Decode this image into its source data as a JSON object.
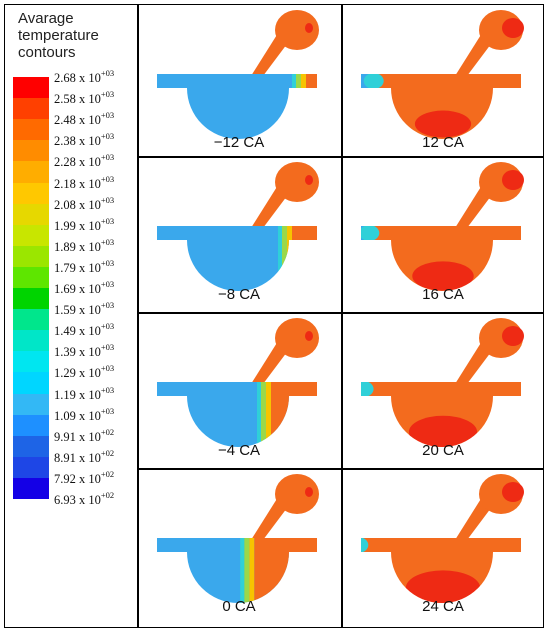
{
  "legend": {
    "title_lines": [
      "Avarage",
      "temperature",
      "contours"
    ],
    "colors": [
      "#ff0000",
      "#ff4000",
      "#ff6a00",
      "#ff8c00",
      "#ffad00",
      "#ffc800",
      "#e6d800",
      "#c8e600",
      "#9be600",
      "#5ee600",
      "#00d400",
      "#00e68c",
      "#00e6c8",
      "#00e6f0",
      "#00d6ff",
      "#33b8f5",
      "#1e90ff",
      "#1e64e6",
      "#1e46e6",
      "#1400e6"
    ],
    "ticks": [
      {
        "m": "2.68",
        "e": "+03"
      },
      {
        "m": "2.58",
        "e": "+03"
      },
      {
        "m": "2.48",
        "e": "+03"
      },
      {
        "m": "2.38",
        "e": "+03"
      },
      {
        "m": "2.28",
        "e": "+03"
      },
      {
        "m": "2.18",
        "e": "+03"
      },
      {
        "m": "2.08",
        "e": "+03"
      },
      {
        "m": "1.99",
        "e": "+03"
      },
      {
        "m": "1.89",
        "e": "+03"
      },
      {
        "m": "1.79",
        "e": "+03"
      },
      {
        "m": "1.69",
        "e": "+03"
      },
      {
        "m": "1.59",
        "e": "+03"
      },
      {
        "m": "1.49",
        "e": "+03"
      },
      {
        "m": "1.39",
        "e": "+03"
      },
      {
        "m": "1.29",
        "e": "+03"
      },
      {
        "m": "1.19",
        "e": "+03"
      },
      {
        "m": "1.09",
        "e": "+03"
      },
      {
        "m": "9.91",
        "e": "+02"
      },
      {
        "m": "8.91",
        "e": "+02"
      },
      {
        "m": "7.92",
        "e": "+02"
      },
      {
        "m": "6.93",
        "e": "+02"
      }
    ],
    "x_text": "x 10"
  },
  "panels": [
    {
      "label": "−12 CA",
      "stage": 0.05
    },
    {
      "label": "12 CA",
      "stage": 0.62
    },
    {
      "label": "−8 CA",
      "stage": 0.15
    },
    {
      "label": "16 CA",
      "stage": 0.72
    },
    {
      "label": "−4 CA",
      "stage": 0.3
    },
    {
      "label": "20 CA",
      "stage": 0.85
    },
    {
      "label": "0 CA",
      "stage": 0.42
    },
    {
      "label": "24 CA",
      "stage": 0.97
    }
  ],
  "colors": {
    "cold": "#3aa8ec",
    "hot": "#f36b1e",
    "peak": "#ee2a14",
    "mid": "#9ad84a",
    "cyan": "#2fd0d8",
    "yellow": "#f7c400",
    "deep": "#1e5fdc"
  }
}
